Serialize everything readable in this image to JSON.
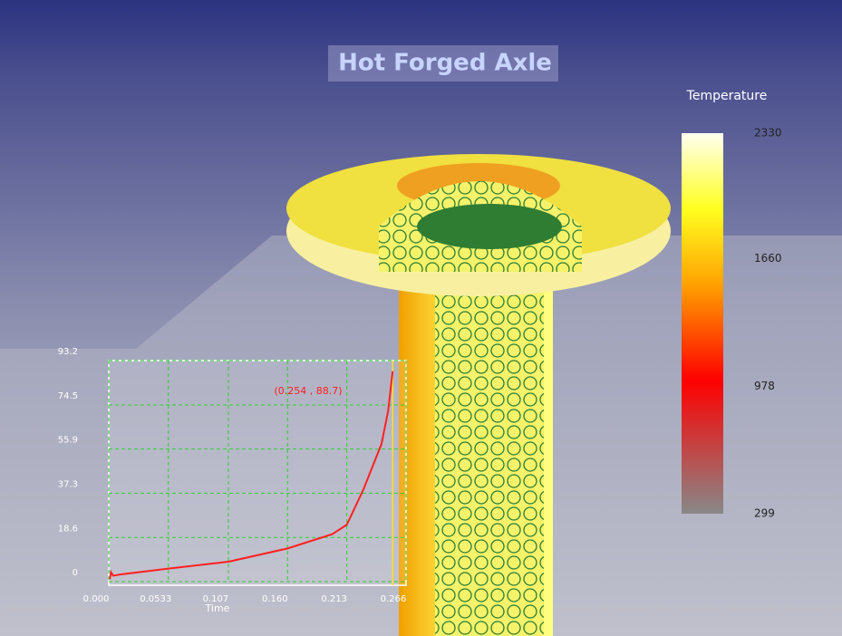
{
  "title": "Hot Forged Axle",
  "legend": {
    "title": "Temperature",
    "ticks": [
      2330,
      1660,
      978,
      299
    ]
  },
  "chart_data": {
    "type": "line",
    "x": [
      0.001,
      0.002,
      0.004,
      0.01,
      0.0533,
      0.107,
      0.16,
      0.2,
      0.213,
      0.228,
      0.244,
      0.25,
      0.254
    ],
    "series": [
      {
        "name": null,
        "color": "#ff2020",
        "values": [
          1,
          4,
          2.5,
          3,
          5.5,
          8.4,
          14,
          20,
          24,
          39,
          58,
          72,
          88.7
        ]
      }
    ],
    "xlim": [
      0,
      0.266
    ],
    "xticks": [
      {
        "value": 0,
        "label": "0.000"
      },
      0.0533,
      0.107,
      {
        "value": 0.16,
        "label": "0.160"
      },
      0.213,
      0.266
    ],
    "ylim": [
      0,
      93.2
    ],
    "yticks": [
      0,
      18.6,
      37.3,
      55.9,
      74.5,
      93.2
    ],
    "xlabel": "Time",
    "annotation": "(0.254 , 88.7)",
    "grid": true
  }
}
